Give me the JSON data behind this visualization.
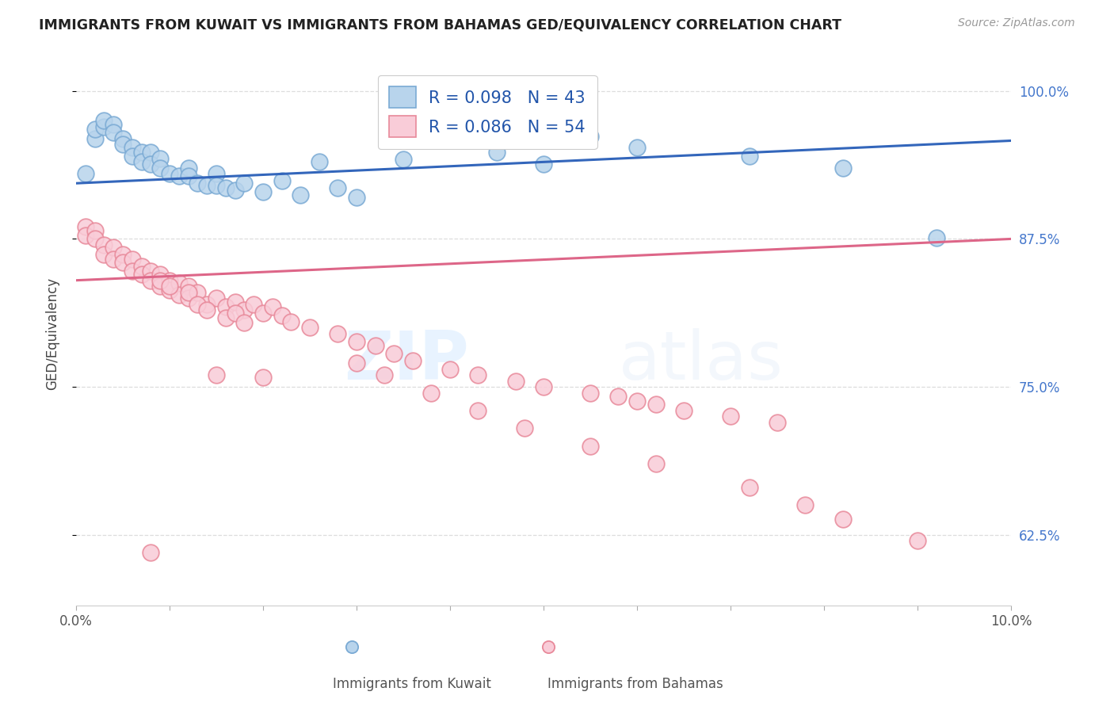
{
  "title": "IMMIGRANTS FROM KUWAIT VS IMMIGRANTS FROM BAHAMAS GED/EQUIVALENCY CORRELATION CHART",
  "source": "Source: ZipAtlas.com",
  "ylabel": "GED/Equivalency",
  "ytick_labels": [
    "100.0%",
    "87.5%",
    "75.0%",
    "62.5%"
  ],
  "ytick_values": [
    1.0,
    0.875,
    0.75,
    0.625
  ],
  "xmin": 0.0,
  "xmax": 0.1,
  "ymin": 0.565,
  "ymax": 1.025,
  "kuwait_color": "#b8d4ec",
  "kuwait_edge_color": "#7aaad4",
  "bahamas_color": "#f9ccd8",
  "bahamas_edge_color": "#e8899a",
  "kuwait_line_color": "#3366bb",
  "bahamas_line_color": "#dd6688",
  "r_kuwait": 0.098,
  "n_kuwait": 43,
  "r_bahamas": 0.086,
  "n_bahamas": 54,
  "kuwait_line_y0": 0.922,
  "kuwait_line_y1": 0.958,
  "bahamas_line_y0": 0.84,
  "bahamas_line_y1": 0.875,
  "kuwait_x": [
    0.001,
    0.002,
    0.002,
    0.003,
    0.003,
    0.004,
    0.004,
    0.005,
    0.005,
    0.006,
    0.006,
    0.007,
    0.007,
    0.008,
    0.008,
    0.009,
    0.009,
    0.01,
    0.011,
    0.012,
    0.012,
    0.013,
    0.014,
    0.015,
    0.015,
    0.016,
    0.017,
    0.018,
    0.02,
    0.022,
    0.024,
    0.026,
    0.028,
    0.03,
    0.035,
    0.04,
    0.045,
    0.05,
    0.055,
    0.06,
    0.072,
    0.082,
    0.092
  ],
  "kuwait_y": [
    0.93,
    0.96,
    0.968,
    0.97,
    0.975,
    0.972,
    0.965,
    0.96,
    0.955,
    0.952,
    0.945,
    0.948,
    0.94,
    0.948,
    0.938,
    0.943,
    0.935,
    0.93,
    0.928,
    0.935,
    0.928,
    0.922,
    0.92,
    0.93,
    0.92,
    0.918,
    0.916,
    0.922,
    0.915,
    0.924,
    0.912,
    0.94,
    0.918,
    0.91,
    0.942,
    0.958,
    0.948,
    0.938,
    0.962,
    0.952,
    0.945,
    0.935,
    0.876
  ],
  "bahamas_x": [
    0.001,
    0.001,
    0.002,
    0.002,
    0.003,
    0.003,
    0.004,
    0.004,
    0.005,
    0.005,
    0.006,
    0.006,
    0.007,
    0.007,
    0.008,
    0.008,
    0.009,
    0.009,
    0.01,
    0.01,
    0.011,
    0.011,
    0.012,
    0.012,
    0.013,
    0.014,
    0.015,
    0.016,
    0.017,
    0.018,
    0.019,
    0.02,
    0.021,
    0.022,
    0.023,
    0.025,
    0.028,
    0.03,
    0.032,
    0.034,
    0.036,
    0.04,
    0.043,
    0.047,
    0.05,
    0.055,
    0.058,
    0.06,
    0.062,
    0.065,
    0.07,
    0.075,
    0.015,
    0.02
  ],
  "bahamas_y": [
    0.885,
    0.878,
    0.882,
    0.875,
    0.87,
    0.862,
    0.868,
    0.858,
    0.862,
    0.855,
    0.858,
    0.848,
    0.852,
    0.845,
    0.848,
    0.84,
    0.845,
    0.835,
    0.84,
    0.832,
    0.838,
    0.828,
    0.835,
    0.825,
    0.83,
    0.82,
    0.825,
    0.818,
    0.822,
    0.815,
    0.82,
    0.812,
    0.818,
    0.81,
    0.805,
    0.8,
    0.795,
    0.788,
    0.785,
    0.778,
    0.772,
    0.765,
    0.76,
    0.755,
    0.75,
    0.745,
    0.742,
    0.738,
    0.735,
    0.73,
    0.725,
    0.72,
    0.76,
    0.758
  ],
  "bahamas_outlier_x": [
    0.009,
    0.01,
    0.012,
    0.013,
    0.014,
    0.016,
    0.017,
    0.018,
    0.03,
    0.033,
    0.038,
    0.043,
    0.048,
    0.055,
    0.062,
    0.072,
    0.078,
    0.082,
    0.09,
    0.008
  ],
  "bahamas_outlier_y": [
    0.84,
    0.835,
    0.83,
    0.82,
    0.815,
    0.808,
    0.812,
    0.804,
    0.77,
    0.76,
    0.745,
    0.73,
    0.715,
    0.7,
    0.685,
    0.665,
    0.65,
    0.638,
    0.62,
    0.61
  ],
  "watermark_zip": "ZIP",
  "watermark_atlas": "atlas",
  "background_color": "#ffffff",
  "grid_color": "#dddddd",
  "xtick_positions": [
    0.0,
    0.01,
    0.02,
    0.03,
    0.04,
    0.05,
    0.06,
    0.07,
    0.08,
    0.09,
    0.1
  ]
}
